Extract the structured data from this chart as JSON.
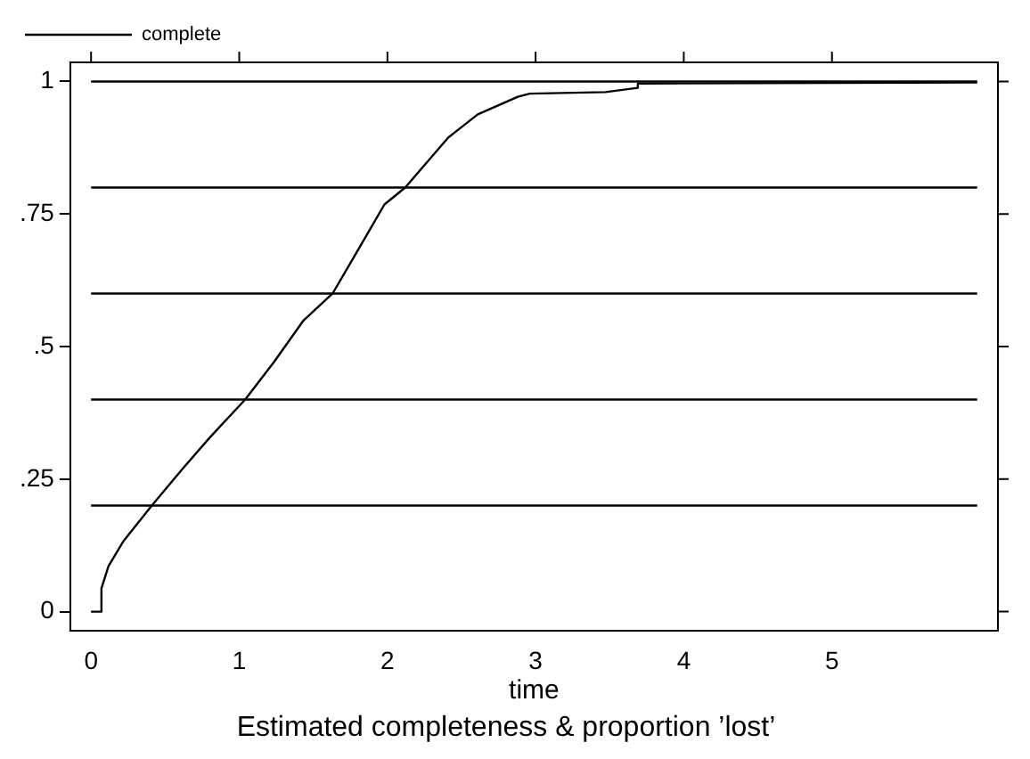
{
  "chart_data": {
    "type": "line",
    "title": "Estimated completeness & proportion ’lost’",
    "xlabel": "time",
    "legend": "top left",
    "grid": false,
    "marker": "none",
    "line_style": "solid",
    "xlim": [
      -0.14,
      6.12
    ],
    "xticks": [
      0,
      1,
      2,
      3,
      4,
      5
    ],
    "ylim": [
      -0.036,
      1.036
    ],
    "yticks": [
      0,
      {
        "value": 0.25,
        "label": ".25"
      },
      {
        "value": 0.5,
        "label": ".5"
      },
      {
        "value": 0.75,
        "label": ".75"
      },
      1
    ],
    "series": [
      {
        "name": "complete",
        "color": "#000000",
        "x": [
          0,
          0.07,
          0.07,
          0.118,
          0.216,
          0.41,
          0.61,
          0.8,
          1.04,
          1.235,
          1.43,
          1.63,
          1.82,
          1.98,
          2.12,
          2.41,
          2.61,
          2.88,
          2.96,
          3.47,
          3.69,
          3.69,
          5.98
        ],
        "values": [
          0,
          0,
          0.044,
          0.086,
          0.132,
          0.2,
          0.267,
          0.328,
          0.4,
          0.471,
          0.548,
          0.6,
          0.691,
          0.768,
          0.8,
          0.894,
          0.938,
          0.971,
          0.977,
          0.98,
          0.988,
          0.996,
          0.998
        ]
      },
      {
        "color": "#000000",
        "x": [
          0,
          5.98
        ],
        "values": [
          1,
          1
        ]
      },
      {
        "color": "#000000",
        "x": [
          0,
          5.98
        ],
        "values": [
          0.8,
          0.8
        ]
      },
      {
        "color": "#000000",
        "x": [
          0,
          5.98
        ],
        "values": [
          0.6,
          0.6
        ]
      },
      {
        "color": "#000000",
        "x": [
          0,
          5.98
        ],
        "values": [
          0.4,
          0.4
        ]
      },
      {
        "color": "#000000",
        "x": [
          0,
          5.98
        ],
        "values": [
          0.2,
          0.2
        ]
      }
    ]
  }
}
